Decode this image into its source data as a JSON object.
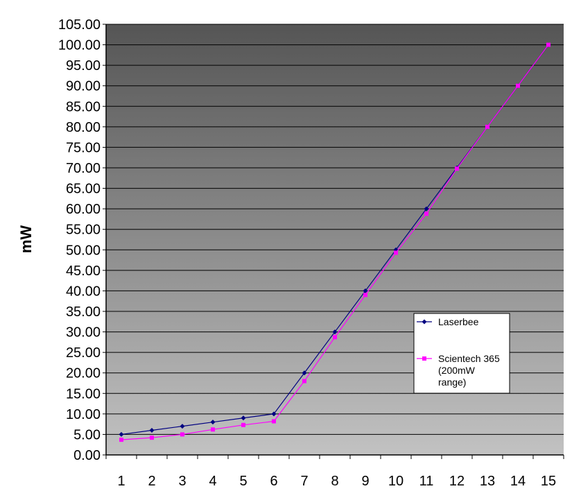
{
  "chart_data": {
    "type": "line",
    "title": "",
    "xlabel": "",
    "ylabel": "mW",
    "categories": [
      "1",
      "2",
      "3",
      "4",
      "5",
      "6",
      "7",
      "8",
      "9",
      "10",
      "11",
      "12",
      "13",
      "14",
      "15"
    ],
    "ylim": [
      0,
      105
    ],
    "ytick_step": 5,
    "ytick_labels": [
      "0.00",
      "5.00",
      "10.00",
      "15.00",
      "20.00",
      "25.00",
      "30.00",
      "35.00",
      "40.00",
      "45.00",
      "50.00",
      "55.00",
      "60.00",
      "65.00",
      "70.00",
      "75.00",
      "80.00",
      "85.00",
      "90.00",
      "95.00",
      "100.00",
      "105.00"
    ],
    "grid": true,
    "legend_position": "right",
    "series": [
      {
        "name": "Laserbee",
        "color": "#000080",
        "marker": "diamond",
        "values": [
          5,
          6,
          7,
          8,
          9,
          10,
          20,
          30,
          40,
          50,
          60,
          70,
          80,
          90,
          100
        ]
      },
      {
        "name": "Scientech 365 (200mW range)",
        "legend_lines": [
          "Scientech 365",
          "(200mW",
          "range)"
        ],
        "color": "#ff00ff",
        "marker": "square",
        "values": [
          3.7,
          4.2,
          5.0,
          6.2,
          7.3,
          8.2,
          18.0,
          28.7,
          39.0,
          49.3,
          58.8,
          69.8,
          80.0,
          90.0,
          100.0
        ]
      }
    ]
  }
}
